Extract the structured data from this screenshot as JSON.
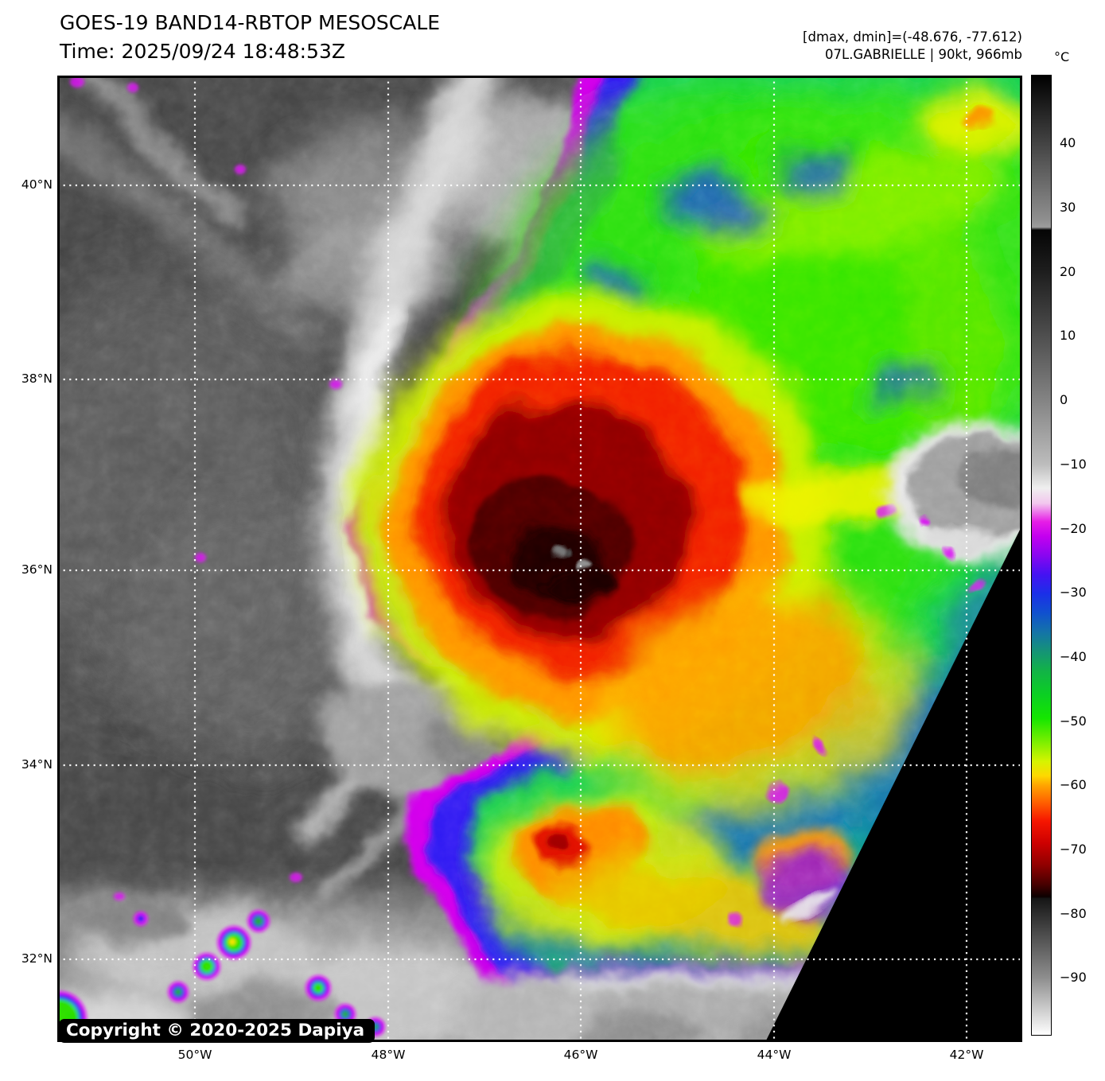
{
  "header": {
    "title": "GOES-19 BAND14-RBTOP MESOSCALE",
    "time": "Time: 2025/09/24 18:48:53Z"
  },
  "meta": {
    "range_line": "[dmax, dmin]=(-48.676, -77.612)",
    "storm_line": "07L.GABRIELLE | 90kt, 966mb"
  },
  "colorbar": {
    "unit_label": "°C",
    "vmax": 50.7,
    "vmin": -99.0,
    "ticks": [
      {
        "value": 40,
        "label": "40"
      },
      {
        "value": 30,
        "label": "30"
      },
      {
        "value": 20,
        "label": "20"
      },
      {
        "value": 10,
        "label": "10"
      },
      {
        "value": 0,
        "label": "0"
      },
      {
        "value": -10,
        "label": "−10"
      },
      {
        "value": -20,
        "label": "−20"
      },
      {
        "value": -30,
        "label": "−30"
      },
      {
        "value": -40,
        "label": "−40"
      },
      {
        "value": -50,
        "label": "−50"
      },
      {
        "value": -60,
        "label": "−60"
      },
      {
        "value": -70,
        "label": "−70"
      },
      {
        "value": -80,
        "label": "−80"
      },
      {
        "value": -90,
        "label": "−90"
      }
    ],
    "stops": [
      [
        0.0,
        "#000000"
      ],
      [
        0.15,
        "#8f8f8f"
      ],
      [
        0.158,
        "#9c9c9c"
      ],
      [
        0.161,
        "#050505"
      ],
      [
        0.205,
        "#1e1e1e"
      ],
      [
        0.272,
        "#4f4f4f"
      ],
      [
        0.339,
        "#848484"
      ],
      [
        0.405,
        "#bcbcbc"
      ],
      [
        0.43,
        "#efefef"
      ],
      [
        0.446,
        "#f2c6ee"
      ],
      [
        0.465,
        "#e61ee6"
      ],
      [
        0.48,
        "#c400ef"
      ],
      [
        0.5,
        "#8a06f0"
      ],
      [
        0.52,
        "#4512f2"
      ],
      [
        0.54,
        "#1b2fe8"
      ],
      [
        0.56,
        "#1050cf"
      ],
      [
        0.58,
        "#1473a8"
      ],
      [
        0.6,
        "#159377"
      ],
      [
        0.62,
        "#12b248"
      ],
      [
        0.645,
        "#0bcf23"
      ],
      [
        0.67,
        "#15e600"
      ],
      [
        0.695,
        "#7def00"
      ],
      [
        0.715,
        "#d6f400"
      ],
      [
        0.73,
        "#fed800"
      ],
      [
        0.74,
        "#ffa400"
      ],
      [
        0.758,
        "#ff5f00"
      ],
      [
        0.777,
        "#f61600"
      ],
      [
        0.8,
        "#cd0000"
      ],
      [
        0.822,
        "#930000"
      ],
      [
        0.843,
        "#480000"
      ],
      [
        0.856,
        "#0c0000"
      ],
      [
        0.858,
        "#161616"
      ],
      [
        0.94,
        "#8d8d8d"
      ],
      [
        1.0,
        "#ffffff"
      ]
    ]
  },
  "map": {
    "lat_labels": [
      "40°N",
      "38°N",
      "36°N",
      "34°N",
      "32°N"
    ],
    "lon_labels": [
      "50°W",
      "48°W",
      "46°W",
      "44°W",
      "42°W"
    ],
    "copyright": "Copyright © 2020-2025 Dapiya"
  },
  "palette": {
    "background_gray": "#434343",
    "cloud_white": "#e0e0e0",
    "fringe_magenta": "#cf06ea",
    "ring_blue": "#2917f2",
    "storm_green": "#15cf49",
    "ring_yellow": "#cdf000",
    "ring_orange": "#ff9000",
    "core_red": "#f21d00",
    "core_maroon": "#8c0400",
    "core_black": "#1c0000",
    "limb_black": "#000000",
    "grid_white": "#ffffff"
  }
}
